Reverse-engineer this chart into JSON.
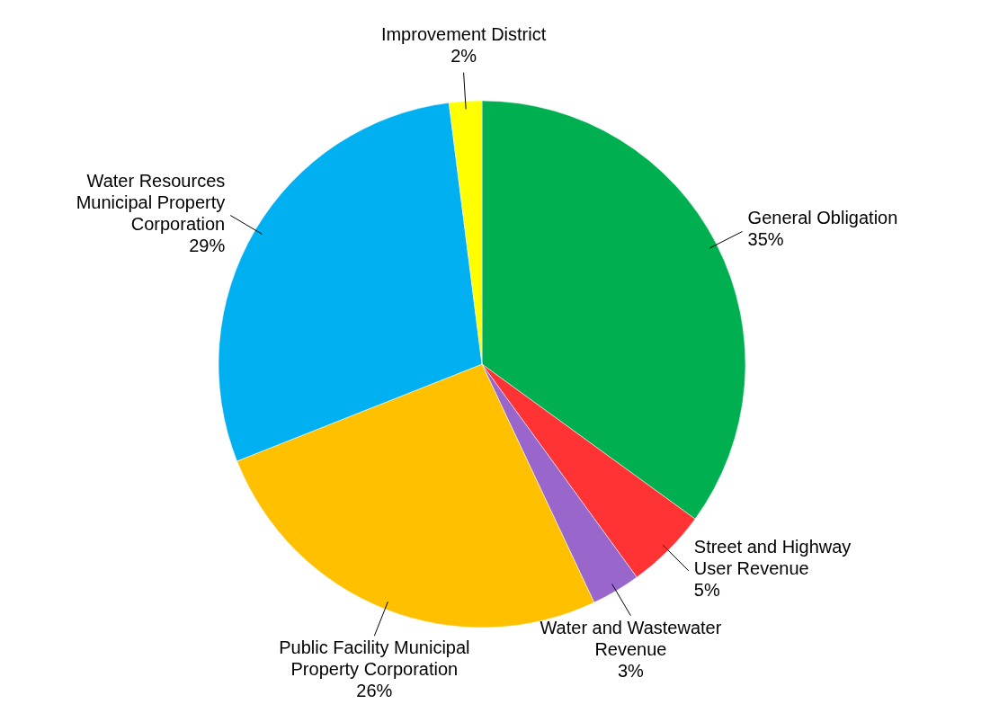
{
  "chart_data": {
    "type": "pie",
    "categories": [
      "General Obligation",
      "Street and Highway\nUser Revenue",
      "Water and Wastewater\nRevenue",
      "Public Facility Municipal\nProperty Corporation",
      "Water Resources\nMunicipal Property\nCorporation",
      "Improvement District"
    ],
    "values": [
      35,
      5,
      3,
      26,
      29,
      2
    ],
    "value_labels": [
      "35%",
      "5%",
      "3%",
      "26%",
      "29%",
      "2%"
    ],
    "colors": [
      "#00b050",
      "#ff3333",
      "#9966cc",
      "#ffc000",
      "#00b0f0",
      "#ffff00"
    ]
  }
}
